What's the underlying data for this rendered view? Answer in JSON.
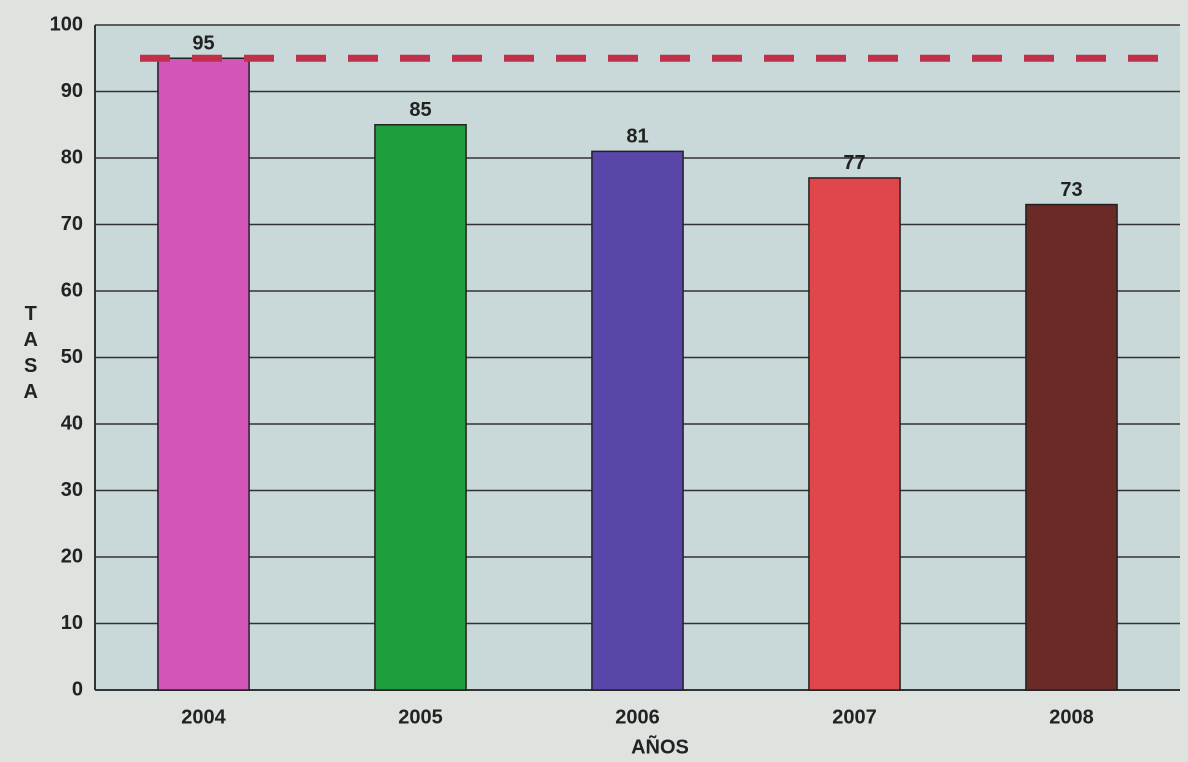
{
  "chart_data": {
    "type": "bar",
    "categories": [
      "2004",
      "2005",
      "2006",
      "2007",
      "2008"
    ],
    "values": [
      95,
      85,
      81,
      77,
      73
    ],
    "colors": [
      "#d455b8",
      "#1f9e3d",
      "#5a46a8",
      "#e0474a",
      "#6b2a26"
    ],
    "x_label": "AÑOS",
    "y_label": "TASA",
    "ylim": [
      0,
      100
    ],
    "yticks": [
      0,
      10,
      20,
      30,
      40,
      50,
      60,
      70,
      80,
      90,
      100
    ],
    "grid": true,
    "reference_line": {
      "value": 95,
      "color": "#c0304a"
    }
  }
}
